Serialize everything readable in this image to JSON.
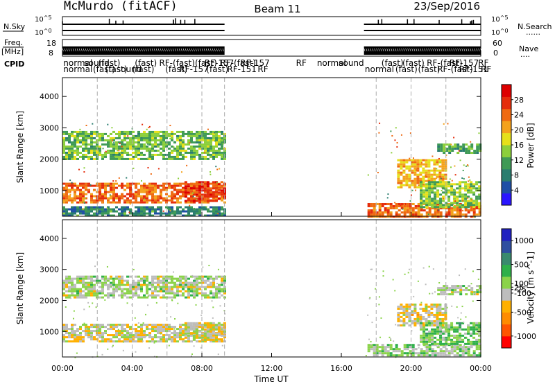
{
  "header": {
    "station": "McMurdo (fitACF)",
    "beam": "Beam 11",
    "date": "23/Sep/2016"
  },
  "sky_panel": {
    "left_label": "N.Sky",
    "right_label": "N.Search",
    "right_dots": "......",
    "ticks": [
      "10^5",
      "10^0"
    ]
  },
  "freq_panel": {
    "left_label_1": "Freq.",
    "left_label_2": "[MHz]",
    "left_ticks": [
      "18",
      "8"
    ],
    "right_label": "Nave",
    "right_dots": "....",
    "right_ticks": [
      "60",
      "0"
    ]
  },
  "cpid": {
    "label": "CPID",
    "row1": [
      {
        "t": "normal",
        "h": 0.05
      },
      {
        "t": "sound",
        "h": 1.25
      },
      {
        "t": "(fast)",
        "h": 2.05
      },
      {
        "t": "(fast)",
        "h": 4.15
      },
      {
        "t": "RF-(fast)",
        "h": 5.55
      },
      {
        "t": "(fast)",
        "h": 7.6
      },
      {
        "t": "RF-157",
        "h": 8.15
      },
      {
        "t": "RF-(fast)",
        "h": 9.05
      },
      {
        "t": "RF-157",
        "h": 10.2
      },
      {
        "t": "RF",
        "h": 13.4
      },
      {
        "t": "normal",
        "h": 14.6
      },
      {
        "t": "sound",
        "h": 15.85
      },
      {
        "t": "(fast)",
        "h": 18.3
      },
      {
        "t": "(fast)",
        "h": 19.5
      },
      {
        "t": "RF-(fast)",
        "h": 20.9
      },
      {
        "t": "RF-157",
        "h": 22.2
      },
      {
        "t": "RF",
        "h": 23.85
      }
    ],
    "row2": [
      {
        "t": "normal",
        "h": 0.05
      },
      {
        "t": "(fast)",
        "h": 1.75
      },
      {
        "t": "(fast)",
        "h": 2.45
      },
      {
        "t": "sound",
        "h": 3.1
      },
      {
        "t": "(fast)",
        "h": 4.0
      },
      {
        "t": "(fast)",
        "h": 5.9
      },
      {
        "t": "RF-157",
        "h": 6.7
      },
      {
        "t": "(fast)",
        "h": 8.25
      },
      {
        "t": "RF-151",
        "h": 9.45
      },
      {
        "t": "RF",
        "h": 11.2
      },
      {
        "t": "normal",
        "h": 17.35
      },
      {
        "t": "(fast)",
        "h": 19.1
      },
      {
        "t": "(fast)",
        "h": 20.4
      },
      {
        "t": "RF-(fast)",
        "h": 21.5
      },
      {
        "t": "RF-151",
        "h": 22.75
      },
      {
        "t": "RF",
        "h": 24.0
      }
    ]
  },
  "colors": {
    "power_scale": [
      "#2b16ff",
      "#1f4fa6",
      "#2a7d6f",
      "#3f9a56",
      "#8ccf3b",
      "#e6e01a",
      "#f4a21c",
      "#ef6a12",
      "#e52d0c",
      "#dd0000"
    ],
    "velocity_scale": [
      "#ff0000",
      "#ff5500",
      "#ff8c00",
      "#ffb000",
      "#bdbdbd",
      "#8bd34a",
      "#2fb04a",
      "#3a8a6e",
      "#2f4fa0",
      "#2020c0"
    ]
  },
  "chart_data": [
    {
      "type": "heatmap",
      "name_on_colorbar": "Power",
      "colorbar_label": "Power [dB]",
      "colorbar_ticks": [
        4,
        8,
        12,
        16,
        20,
        24,
        28
      ],
      "colorbar_range": [
        0,
        32
      ],
      "ylabel": "Slant Range [km]",
      "yticks": [
        1000,
        2000,
        3000,
        4000
      ],
      "ylim": [
        180,
        4600
      ],
      "xlim_hours": [
        0,
        24
      ],
      "blocks": [
        {
          "x0": 0.0,
          "x1": 9.3,
          "y0": 650,
          "y1": 1250,
          "v": 24
        },
        {
          "x0": 0.0,
          "x1": 9.3,
          "y0": 2000,
          "y1": 2900,
          "v": 13
        },
        {
          "x0": 0.0,
          "x1": 9.3,
          "y0": 200,
          "y1": 500,
          "v": 9
        },
        {
          "x0": 7.0,
          "x1": 9.3,
          "y0": 700,
          "y1": 1300,
          "v": 27
        },
        {
          "x0": 17.5,
          "x1": 24.0,
          "y0": 200,
          "y1": 600,
          "v": 24
        },
        {
          "x0": 19.2,
          "x1": 22.0,
          "y0": 1100,
          "y1": 2000,
          "v": 20
        },
        {
          "x0": 20.5,
          "x1": 24.0,
          "y0": 500,
          "y1": 1300,
          "v": 14
        },
        {
          "x0": 21.5,
          "x1": 24.0,
          "y0": 2200,
          "y1": 2500,
          "v": 12
        }
      ]
    },
    {
      "type": "heatmap",
      "name_on_colorbar": "Velocity",
      "colorbar_label": "Velocity [m s^-1]",
      "colorbar_ticks": [
        -1000,
        -500,
        -100,
        -25,
        25,
        100,
        500,
        1000
      ],
      "colorbar_range": [
        -1250,
        1250
      ],
      "ylabel": "Slant Range [km]",
      "yticks": [
        1000,
        2000,
        3000,
        4000
      ],
      "ylim": [
        180,
        4600
      ],
      "xlabel": "Time UT",
      "xticks": [
        "00:00",
        "04:00",
        "08:00",
        "12:00",
        "16:00",
        "20:00",
        "00:00"
      ],
      "xtick_hours": [
        0,
        4,
        8,
        12,
        16,
        20,
        24
      ],
      "xlim_hours": [
        0,
        24
      ],
      "blocks": [
        {
          "x0": 0.0,
          "x1": 9.3,
          "y0": 650,
          "y1": 1250,
          "v": -150
        },
        {
          "x0": 0.0,
          "x1": 9.3,
          "y0": 2100,
          "y1": 2800,
          "v": 0
        },
        {
          "x0": 7.0,
          "x1": 9.3,
          "y0": 700,
          "y1": 1300,
          "v": -150
        },
        {
          "x0": 17.5,
          "x1": 24.0,
          "y0": 200,
          "y1": 600,
          "v": 60
        },
        {
          "x0": 19.2,
          "x1": 22.0,
          "y0": 1200,
          "y1": 1900,
          "v": -200
        },
        {
          "x0": 20.5,
          "x1": 24.0,
          "y0": 600,
          "y1": 1300,
          "v": 200
        },
        {
          "x0": 21.5,
          "x1": 24.0,
          "y0": 2200,
          "y1": 2500,
          "v": 0
        }
      ]
    }
  ]
}
